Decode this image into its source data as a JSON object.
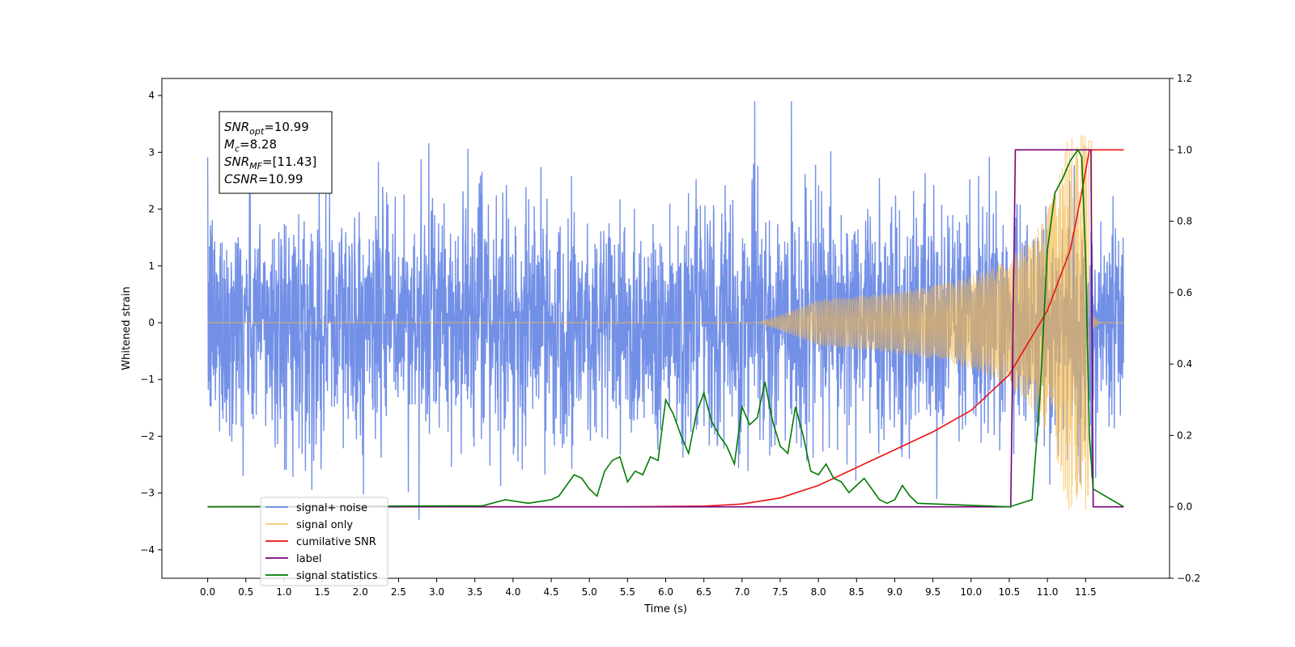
{
  "chart_data": {
    "type": "line",
    "xlabel": "Time (s)",
    "ylabel": "Whitened strain",
    "xlim": [
      -0.6,
      12.6
    ],
    "ylim": [
      -4.5,
      4.3
    ],
    "ylim_right": [
      -0.2,
      1.2
    ],
    "x_ticks": [
      "0.0",
      "0.5",
      "1.0",
      "1.5",
      "2.0",
      "2.5",
      "3.0",
      "3.5",
      "4.0",
      "4.5",
      "5.0",
      "5.5",
      "6.0",
      "6.5",
      "7.0",
      "7.5",
      "8.0",
      "8.5",
      "9.0",
      "9.5",
      "10.0",
      "10.5",
      "11.0",
      "11.5"
    ],
    "y_ticks": [
      4,
      3,
      2,
      1,
      0,
      -1,
      -2,
      -3,
      -4
    ],
    "y_ticks_right": [
      1.2,
      1.0,
      0.8,
      0.6,
      0.4,
      0.2,
      0.0,
      -0.2
    ],
    "grid": false,
    "legend_location": "lower-left",
    "annotation": {
      "lines": [
        {
          "sym": "SNR",
          "sub": "opt",
          "val": "=10.99"
        },
        {
          "sym": "M",
          "sub": "c",
          "val": "=8.28"
        },
        {
          "sym": "SNR",
          "sub": "MF",
          "val": "=[11.43]"
        },
        {
          "sym": "CSNR",
          "sub": "",
          "val": "=10.99"
        }
      ]
    },
    "series": [
      {
        "name": "signal+ noise",
        "color": "#6b8ae6",
        "axis": "left",
        "note": "noise trace spanning x 0 to 12.0, values roughly -4.1 to 3.9"
      },
      {
        "name": "signal only",
        "color": "#f5b84a",
        "axis": "left",
        "chirp_start": 7.2,
        "merger": 11.5,
        "peak_amplitude": 3.3
      },
      {
        "name": "cumilative SNR",
        "color": "#ee1111",
        "axis": "right",
        "x": [
          0,
          5.5,
          6.5,
          7.0,
          7.5,
          8.0,
          8.5,
          9.0,
          9.5,
          10.0,
          10.5,
          11.0,
          11.3,
          11.45,
          11.55,
          12.0
        ],
        "y": [
          0,
          0.0,
          0.002,
          0.008,
          0.025,
          0.06,
          0.11,
          0.16,
          0.21,
          0.27,
          0.37,
          0.55,
          0.72,
          0.88,
          1.0,
          1.0
        ]
      },
      {
        "name": "label",
        "color": "#7a007a",
        "axis": "right",
        "x": [
          0,
          10.52,
          10.58,
          11.57,
          11.6,
          12.0
        ],
        "y": [
          0,
          0,
          1.0,
          1.0,
          0,
          0
        ]
      },
      {
        "name": "signal statistics",
        "color": "#007a00",
        "axis": "right",
        "x": [
          0,
          3.6,
          3.9,
          4.2,
          4.5,
          4.6,
          4.8,
          4.9,
          5.0,
          5.1,
          5.2,
          5.3,
          5.4,
          5.5,
          5.6,
          5.7,
          5.8,
          5.9,
          6.0,
          6.1,
          6.2,
          6.3,
          6.4,
          6.5,
          6.6,
          6.7,
          6.8,
          6.9,
          7.0,
          7.1,
          7.2,
          7.3,
          7.4,
          7.5,
          7.6,
          7.7,
          7.8,
          7.9,
          8.0,
          8.1,
          8.2,
          8.3,
          8.4,
          8.5,
          8.6,
          8.7,
          8.8,
          8.9,
          9.0,
          9.1,
          9.2,
          9.3,
          10.5,
          10.8,
          10.9,
          11.0,
          11.1,
          11.2,
          11.3,
          11.4,
          11.45,
          11.5,
          11.55,
          11.6,
          12.0
        ],
        "y": [
          0,
          0.003,
          0.02,
          0.01,
          0.02,
          0.03,
          0.09,
          0.08,
          0.05,
          0.03,
          0.1,
          0.13,
          0.14,
          0.07,
          0.1,
          0.09,
          0.14,
          0.13,
          0.3,
          0.26,
          0.2,
          0.15,
          0.26,
          0.32,
          0.24,
          0.2,
          0.17,
          0.12,
          0.28,
          0.23,
          0.25,
          0.35,
          0.24,
          0.17,
          0.15,
          0.28,
          0.2,
          0.1,
          0.09,
          0.12,
          0.08,
          0.07,
          0.04,
          0.06,
          0.08,
          0.05,
          0.02,
          0.01,
          0.02,
          0.06,
          0.03,
          0.01,
          0.0,
          0.02,
          0.3,
          0.72,
          0.88,
          0.92,
          0.97,
          1.0,
          0.98,
          0.7,
          0.2,
          0.05,
          0.0
        ]
      }
    ]
  }
}
